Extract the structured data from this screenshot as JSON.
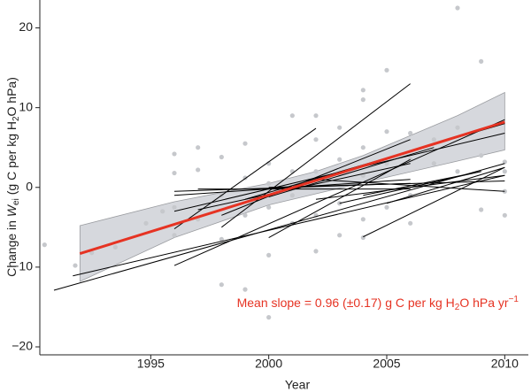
{
  "chart_data": {
    "type": "scatter",
    "xlabel": "Year",
    "ylabel": [
      "Change in ",
      "W",
      "ei",
      " (g C per kg H",
      "2",
      "O hPa)"
    ],
    "annotation": [
      "Mean slope = 0.96 (±0.17) g C per kg H",
      "2",
      "O hPa yr",
      "−1"
    ],
    "xlim": [
      1990.3,
      2011
    ],
    "ylim": [
      -21,
      23.5
    ],
    "xticks": [
      1995,
      2000,
      2005,
      2010
    ],
    "yticks": [
      {
        "value": -20,
        "label": "−20"
      },
      {
        "value": -10,
        "label": "−10"
      },
      0,
      10,
      20
    ],
    "points": {
      "color": "#c6c8cc",
      "x": [
        1990.5,
        1991.8,
        1992.5,
        1993.5,
        1994.8,
        1995.5,
        1996,
        1996,
        1996,
        1996,
        1997,
        1997,
        1997,
        1998,
        1998,
        1998,
        1998,
        1999,
        1999,
        1999,
        1999,
        2000,
        2000,
        2000,
        2000,
        2000,
        2001,
        2001,
        2001,
        2001,
        2002,
        2002,
        2002,
        2002,
        2002,
        2003,
        2003,
        2003,
        2003,
        2004,
        2004,
        2004,
        2004,
        2004,
        2004,
        2005,
        2005,
        2005,
        2005,
        2006,
        2006,
        2006,
        2006,
        2007,
        2007,
        2008,
        2008,
        2008,
        2009,
        2009,
        2009,
        2010,
        2010,
        2010,
        2010
      ],
      "y": [
        -7.2,
        -9.8,
        -8.2,
        -7.5,
        -4.5,
        -3,
        4.2,
        1.8,
        -2.5,
        -6,
        5,
        2.2,
        -4,
        3.8,
        -1,
        -6.5,
        -12.2,
        5.5,
        1.2,
        -3.5,
        -12.8,
        3,
        0.5,
        -2.5,
        -8.5,
        -16.3,
        2,
        -1,
        -4.5,
        9,
        9,
        6,
        2,
        -3.5,
        -8,
        7.5,
        3.5,
        -2,
        -6,
        12.2,
        11,
        5,
        1.5,
        -4,
        -6.3,
        14.7,
        7,
        3,
        -2.5,
        6.8,
        3.5,
        -1,
        -4.5,
        6,
        3,
        22.5,
        7.5,
        2,
        15.8,
        4,
        -2.8,
        3.2,
        2,
        -0.5,
        -3.5
      ]
    },
    "band": {
      "color": "#d6d8dd",
      "x": [
        1992,
        1996,
        2000,
        2002,
        2004,
        2008,
        2010
      ],
      "upper": [
        -4.8,
        -1.8,
        0.5,
        2,
        4,
        9,
        11.9
      ],
      "lower": [
        -11.8,
        -6.3,
        -2.2,
        -0.8,
        0.6,
        3.3,
        4.7
      ]
    },
    "mean_line": {
      "color": "#e63323",
      "x": [
        1992,
        2010
      ],
      "y": [
        -8.3,
        8.2
      ]
    },
    "lines": {
      "color": "#000000",
      "items": [
        {
          "x": [
            1990.9,
            2010
          ],
          "y": [
            -12.9,
            3.0
          ]
        },
        {
          "x": [
            1991.7,
            2010
          ],
          "y": [
            -11.1,
            1.5
          ]
        },
        {
          "x": [
            1996,
            2010
          ],
          "y": [
            -9.8,
            8.5
          ]
        },
        {
          "x": [
            1996,
            2002
          ],
          "y": [
            -5.2,
            7.4
          ]
        },
        {
          "x": [
            1996,
            2006
          ],
          "y": [
            -0.5,
            0.5
          ]
        },
        {
          "x": [
            1996,
            2006
          ],
          "y": [
            -1,
            1
          ]
        },
        {
          "x": [
            1997,
            2006
          ],
          "y": [
            -0.2,
            -0.2
          ]
        },
        {
          "x": [
            1996,
            2010
          ],
          "y": [
            -3,
            6.8
          ]
        },
        {
          "x": [
            1998,
            2006
          ],
          "y": [
            -5,
            13
          ]
        },
        {
          "x": [
            1998,
            2006
          ],
          "y": [
            -3.5,
            6
          ]
        },
        {
          "x": [
            1999,
            2010
          ],
          "y": [
            -1.5,
            8
          ]
        },
        {
          "x": [
            2000,
            2007
          ],
          "y": [
            -1.2,
            5
          ]
        },
        {
          "x": [
            2000,
            2006
          ],
          "y": [
            -6.3,
            3.5
          ]
        },
        {
          "x": [
            2001,
            2006
          ],
          "y": [
            0,
            4.5
          ]
        },
        {
          "x": [
            2002,
            2010
          ],
          "y": [
            -1.5,
            1.5
          ]
        },
        {
          "x": [
            2003,
            2009
          ],
          "y": [
            -2,
            2
          ]
        },
        {
          "x": [
            2004,
            2010
          ],
          "y": [
            -6.2,
            2.5
          ]
        },
        {
          "x": [
            2002,
            2010
          ],
          "y": [
            1,
            -0.5
          ]
        },
        {
          "x": [
            2005,
            2010
          ],
          "y": [
            -2,
            2.5
          ]
        },
        {
          "x": [
            2004,
            2009
          ],
          "y": [
            -1,
            2
          ]
        },
        {
          "x": [
            1997,
            2006
          ],
          "y": [
            -2.8,
            3
          ]
        },
        {
          "x": [
            2000,
            2010
          ],
          "y": [
            0,
            0.8
          ]
        }
      ]
    }
  }
}
